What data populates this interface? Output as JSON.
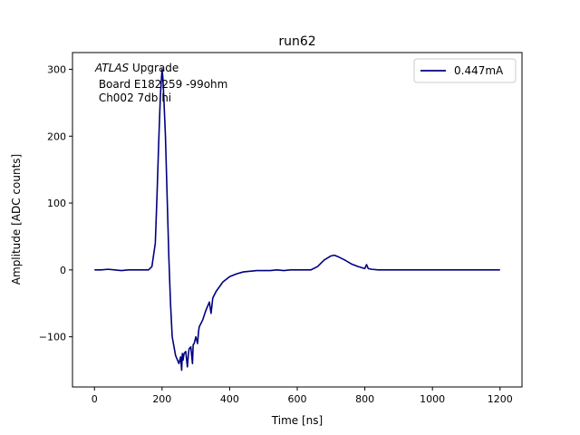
{
  "chart_data": {
    "type": "line",
    "title": "run62",
    "xlabel": "Time [ns]",
    "ylabel": "Amplitude [ADC counts]",
    "xlim": [
      -65,
      1265
    ],
    "ylim": [
      -175,
      325
    ],
    "xticks": [
      0,
      200,
      400,
      600,
      800,
      1000,
      1200
    ],
    "yticks": [
      -100,
      0,
      100,
      200,
      300
    ],
    "grid": false,
    "legend_position": "top-right",
    "annotation": {
      "italic": "ATLAS",
      "rest": " Upgrade",
      "line2": " Board E182259 -99ohm",
      "line3": " Ch002 7db hi"
    },
    "series": [
      {
        "name": "0.447mA",
        "color": "#000080",
        "x": [
          0,
          20,
          40,
          60,
          80,
          100,
          120,
          140,
          160,
          170,
          180,
          185,
          190,
          195,
          198,
          200,
          202,
          205,
          210,
          215,
          220,
          225,
          230,
          240,
          250,
          255,
          258,
          260,
          262,
          265,
          270,
          275,
          278,
          280,
          285,
          290,
          292,
          295,
          300,
          305,
          308,
          310,
          320,
          330,
          340,
          345,
          350,
          360,
          380,
          400,
          420,
          440,
          460,
          480,
          500,
          520,
          540,
          560,
          580,
          600,
          620,
          640,
          660,
          680,
          700,
          710,
          720,
          740,
          760,
          780,
          800,
          805,
          810,
          820,
          840,
          860,
          880,
          900,
          950,
          1000,
          1050,
          1100,
          1150,
          1200
        ],
        "values": [
          0,
          0,
          1,
          0,
          -1,
          0,
          0,
          0,
          0,
          5,
          40,
          110,
          190,
          260,
          285,
          300,
          290,
          260,
          200,
          110,
          20,
          -50,
          -100,
          -128,
          -140,
          -130,
          -150,
          -125,
          -135,
          -125,
          -122,
          -145,
          -125,
          -118,
          -115,
          -140,
          -112,
          -110,
          -100,
          -110,
          -92,
          -85,
          -75,
          -60,
          -48,
          -65,
          -42,
          -32,
          -18,
          -10,
          -6,
          -3,
          -2,
          -1,
          -1,
          -1,
          0,
          -1,
          0,
          0,
          0,
          0,
          5,
          15,
          21,
          22,
          20,
          15,
          9,
          5,
          2,
          8,
          2,
          1,
          0,
          0,
          0,
          0,
          0,
          0,
          0,
          0,
          0,
          0
        ]
      }
    ]
  }
}
